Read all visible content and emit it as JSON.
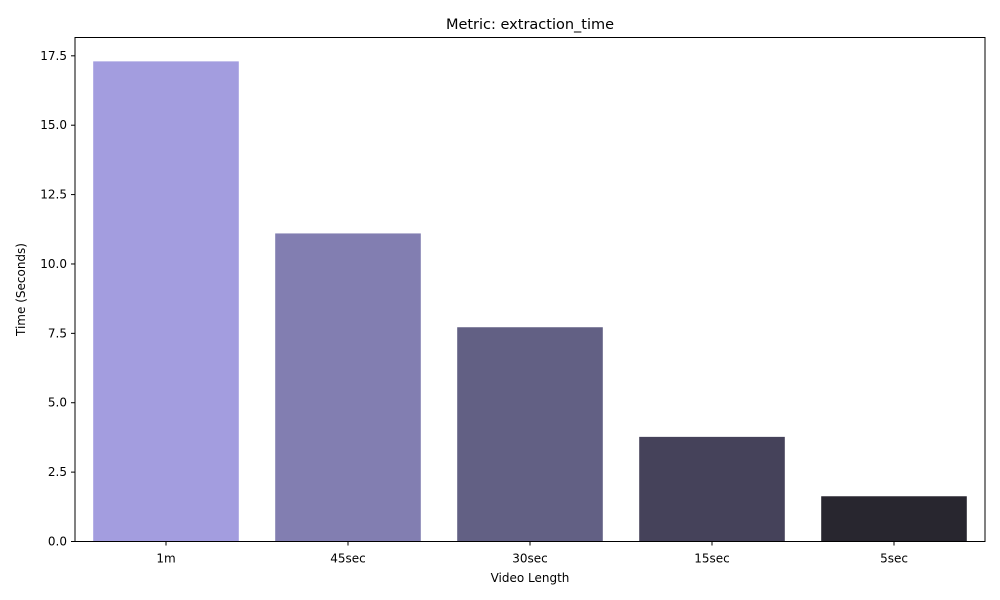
{
  "chart_data": {
    "type": "bar",
    "title": "Metric: extraction_time",
    "xlabel": "Video Length",
    "ylabel": "Time (Seconds)",
    "categories": [
      "1m",
      "45sec",
      "30sec",
      "15sec",
      "5sec"
    ],
    "values": [
      17.3,
      11.1,
      7.72,
      3.77,
      1.63
    ],
    "colors": [
      "#a39ddf",
      "#827eb1",
      "#626084",
      "#45425a",
      "#28262f"
    ],
    "ylim": [
      0,
      18.16
    ],
    "yticks": [
      0.0,
      2.5,
      5.0,
      7.5,
      10.0,
      12.5,
      15.0,
      17.5
    ],
    "ytick_labels": [
      "0.0",
      "2.5",
      "5.0",
      "7.5",
      "10.0",
      "12.5",
      "15.0",
      "17.5"
    ],
    "grid": false,
    "legend": "none"
  }
}
